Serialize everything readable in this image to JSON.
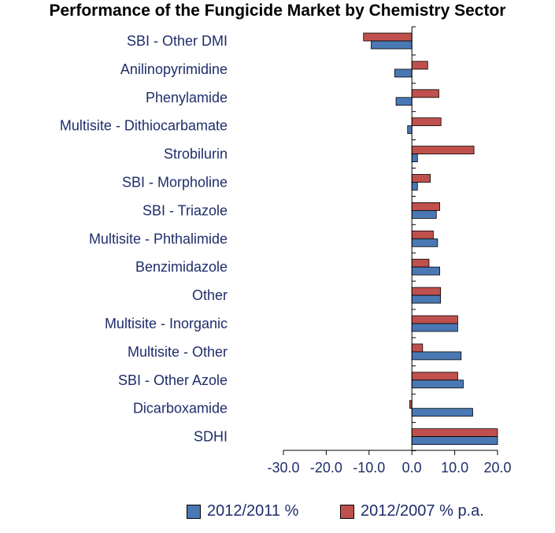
{
  "chart_data": {
    "type": "bar",
    "orientation": "horizontal",
    "title": "Performance of the Fungicide Market by Chemistry Sector",
    "categories": [
      "SBI - Other DMI",
      "Anilinopyrimidine",
      "Phenylamide",
      "Multisite - Dithiocarbamate",
      "Strobilurin",
      "SBI - Morpholine",
      "SBI - Triazole",
      "Multisite - Phthalimide",
      "Benzimidazole",
      "Other",
      "Multisite - Inorganic",
      "Multisite - Other",
      "SBI - Other Azole",
      "Dicarboxamide",
      "SDHI"
    ],
    "series": [
      {
        "name": "2012/2011 %",
        "color": "#4a78b5",
        "values": [
          -9.5,
          -4.0,
          -3.7,
          -1.0,
          1.3,
          1.3,
          5.7,
          6.0,
          6.5,
          6.7,
          10.7,
          11.5,
          12.0,
          14.2,
          20.0
        ]
      },
      {
        "name": "2012/2007 % p.a.",
        "color": "#c0504d",
        "values": [
          -11.3,
          3.7,
          6.3,
          6.8,
          14.5,
          4.3,
          6.5,
          5.0,
          4.0,
          6.7,
          10.7,
          2.5,
          10.7,
          -0.5,
          20.0
        ]
      }
    ],
    "x_ticks": [
      "-30.0",
      "-20.0",
      "-10.0",
      "0.0",
      "10.0",
      "20.0"
    ],
    "xlim": [
      -30,
      20
    ],
    "grid": false,
    "legend_position": "bottom"
  }
}
